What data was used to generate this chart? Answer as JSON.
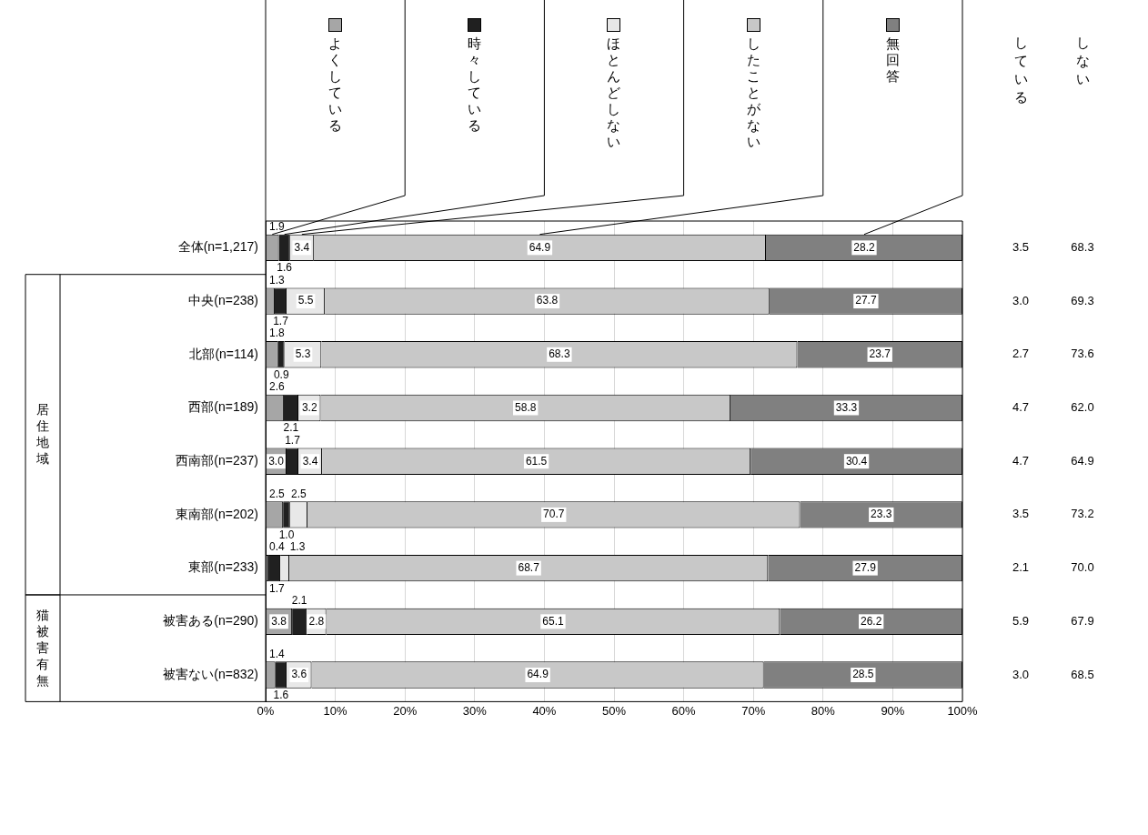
{
  "chart_data": {
    "type": "bar",
    "orientation": "horizontal",
    "stacked": true,
    "grid": "x",
    "legend": "top",
    "categories": [
      "全体(n=1,217)",
      "中央(n=238)",
      "北部(n=114)",
      "西部(n=189)",
      "西南部(n=237)",
      "東南部(n=202)",
      "東部(n=233)",
      "被害ある(n=290)",
      "被害ない(n=832)"
    ],
    "xlim": [
      0,
      100
    ],
    "xticks": [
      {
        "value": 0,
        "label": "0%"
      },
      {
        "value": 10,
        "label": "10%"
      },
      {
        "value": 20,
        "label": "20%"
      },
      {
        "value": 30,
        "label": "30%"
      },
      {
        "value": 40,
        "label": "40%"
      },
      {
        "value": 50,
        "label": "50%"
      },
      {
        "value": 60,
        "label": "60%"
      },
      {
        "value": 70,
        "label": "70%"
      },
      {
        "value": 80,
        "label": "80%"
      },
      {
        "value": 90,
        "label": "90%"
      },
      {
        "value": 100,
        "label": "100%"
      }
    ],
    "series": [
      {
        "name": "よくしている",
        "color": "#a6a6a6",
        "values": [
          1.9,
          1.3,
          1.8,
          2.6,
          3.0,
          2.5,
          0.4,
          3.8,
          1.4
        ],
        "value_labels": [
          "1.9",
          "1.3",
          "1.8",
          "2.6",
          "3.0",
          "2.5",
          "0.4",
          "3.8",
          "1.4"
        ]
      },
      {
        "name": "時々している",
        "color": "#202020",
        "values": [
          1.6,
          1.7,
          0.9,
          2.1,
          1.7,
          1.0,
          1.7,
          2.1,
          1.6
        ],
        "value_labels": [
          "1.6",
          "1.7",
          "0.9",
          "2.1",
          "1.7",
          "1.0",
          "1.7",
          "2.1",
          "1.6"
        ]
      },
      {
        "name": "ほとんどしない",
        "color": "#e8e8e8",
        "values": [
          3.4,
          5.5,
          5.3,
          3.2,
          3.4,
          2.5,
          1.3,
          2.8,
          3.6
        ],
        "value_labels": [
          "3.4",
          "5.5",
          "5.3",
          "3.2",
          "3.4",
          "2.5",
          "1.3",
          "2.8",
          "3.6"
        ]
      },
      {
        "name": "したことがない",
        "color": "#c8c8c8",
        "values": [
          64.9,
          63.8,
          68.3,
          58.8,
          61.5,
          70.7,
          68.7,
          65.1,
          64.9
        ],
        "value_labels": [
          "64.9",
          "63.8",
          "68.3",
          "58.8",
          "61.5",
          "70.7",
          "68.7",
          "65.1",
          "64.9"
        ]
      },
      {
        "name": "無回答",
        "color": "#808080",
        "values": [
          28.2,
          27.7,
          23.7,
          33.3,
          30.4,
          23.3,
          27.9,
          26.2,
          28.5
        ],
        "value_labels": [
          "28.2",
          "27.7",
          "23.7",
          "33.3",
          "30.4",
          "23.3",
          "27.9",
          "26.2",
          "28.5"
        ]
      }
    ],
    "annotations": [
      "居住地域",
      "猫被害有無",
      "している",
      "しない",
      "3.5",
      "68.3",
      "3.0",
      "69.3",
      "2.7",
      "73.6",
      "4.7",
      "62.0",
      "4.7",
      "64.9",
      "3.5",
      "73.2",
      "2.1",
      "70.0",
      "5.9",
      "67.9",
      "3.0",
      "68.5"
    ]
  }
}
